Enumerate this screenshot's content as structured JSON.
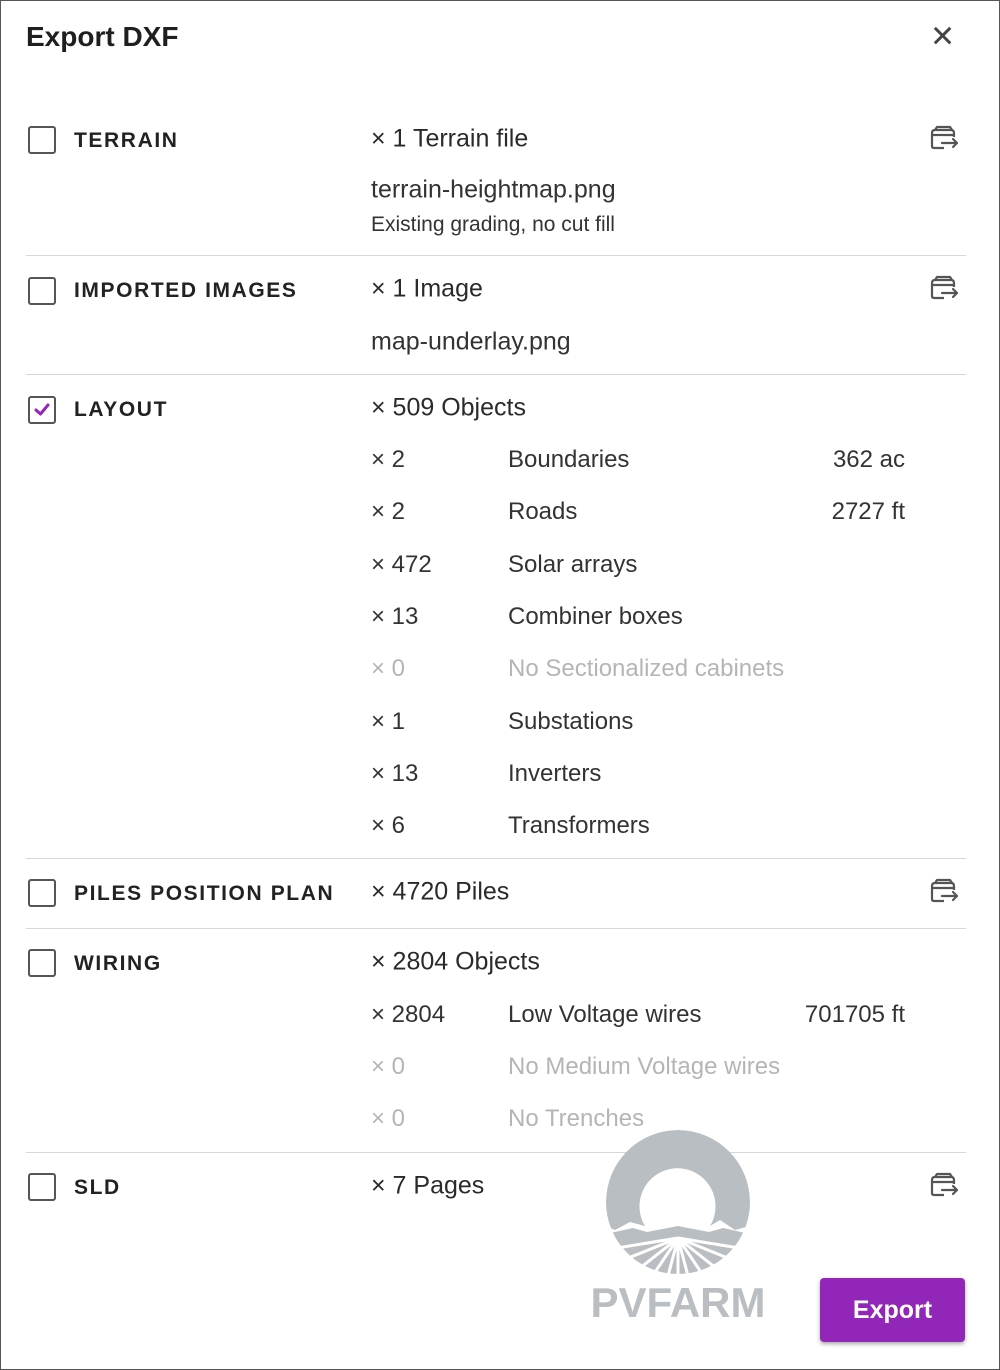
{
  "dialog": {
    "title": "Export DXF",
    "close_icon": "close-icon"
  },
  "sections": {
    "terrain": {
      "label": "TERRAIN",
      "checked": false,
      "count": "× 1 Terrain file",
      "file": "terrain-heightmap.png",
      "note": "Existing grading, no cut fill"
    },
    "images": {
      "label": "IMPORTED IMAGES",
      "checked": false,
      "count": "× 1 Image",
      "file": "map-underlay.png"
    },
    "layout": {
      "label": "LAYOUT",
      "checked": true,
      "count": "× 509 Objects",
      "items": [
        {
          "count": "× 2",
          "name": "Boundaries",
          "value": "362 ac"
        },
        {
          "count": "× 2",
          "name": "Roads",
          "value": "2727 ft"
        },
        {
          "count": "× 472",
          "name": "Solar arrays",
          "value": ""
        },
        {
          "count": "× 13",
          "name": "Combiner boxes",
          "value": ""
        },
        {
          "count": "× 0",
          "name": "No Sectionalized cabinets",
          "value": "",
          "disabled": true
        },
        {
          "count": "× 1",
          "name": "Substations",
          "value": ""
        },
        {
          "count": "× 13",
          "name": "Inverters",
          "value": ""
        },
        {
          "count": "× 6",
          "name": "Transformers",
          "value": ""
        }
      ]
    },
    "piles": {
      "label": "PILES POSITION PLAN",
      "checked": false,
      "count": "× 4720 Piles"
    },
    "wiring": {
      "label": "WIRING",
      "checked": false,
      "count": "× 2804 Objects",
      "items": [
        {
          "count": "× 2804",
          "name": "Low Voltage wires",
          "value": "701705 ft"
        },
        {
          "count": "× 0",
          "name": "No Medium Voltage wires",
          "value": "",
          "disabled": true
        },
        {
          "count": "× 0",
          "name": "No Trenches",
          "value": "",
          "disabled": true
        }
      ]
    },
    "sld": {
      "label": "SLD",
      "checked": false,
      "count": "× 7 Pages"
    }
  },
  "footer": {
    "export_label": "Export",
    "accent": "#9226b8"
  },
  "logo": {
    "text": "PVFARM",
    "color": "#b9bec2"
  }
}
